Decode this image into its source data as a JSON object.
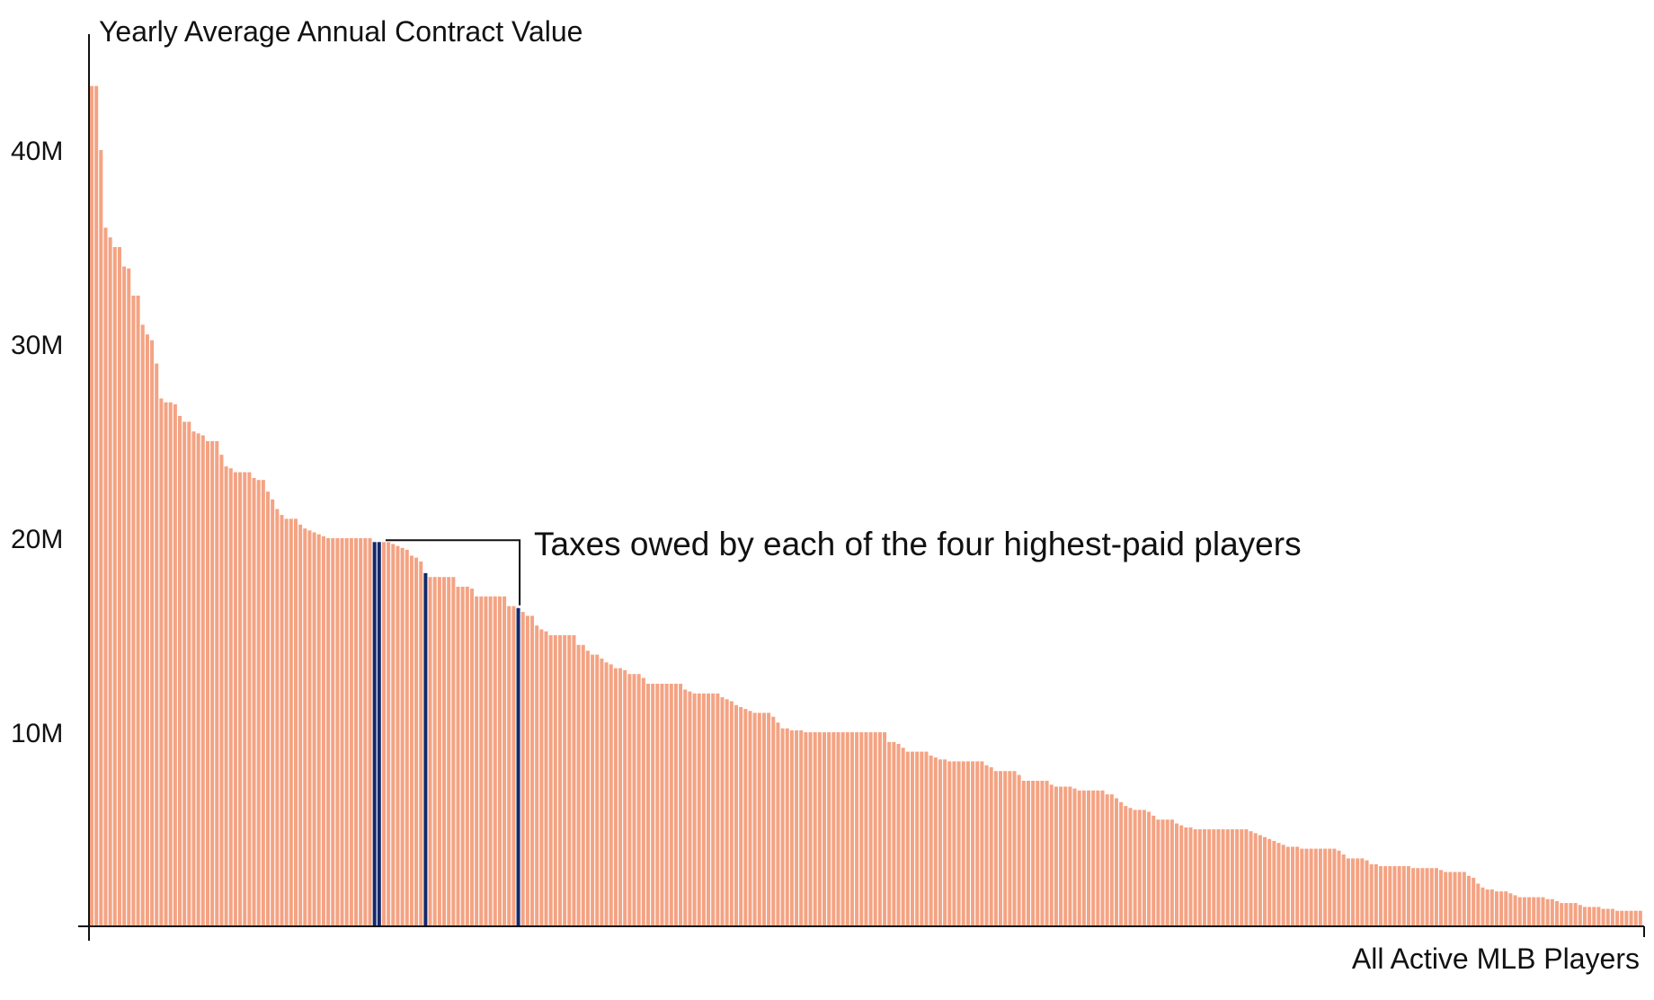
{
  "chart_data": {
    "type": "bar",
    "title": "",
    "ylabel": "Yearly Average Annual Contract Value",
    "xlabel": "All Active MLB Players",
    "ylim": [
      0,
      45000000
    ],
    "yticks": [
      {
        "value": 10000000,
        "label": "10M"
      },
      {
        "value": 20000000,
        "label": "20M"
      },
      {
        "value": 30000000,
        "label": "30M"
      },
      {
        "value": 40000000,
        "label": "40M"
      }
    ],
    "grid": false,
    "legend": "none",
    "colors": {
      "bar": "#f4a383",
      "highlight": "#14296b",
      "axis": "#111111",
      "annotation_line": "#111111"
    },
    "annotation": {
      "text": "Taxes owed by each of the four highest-paid players",
      "points_to_indices": [
        61,
        62,
        72,
        92
      ]
    },
    "highlight_indices": [
      61,
      62,
      72,
      92
    ],
    "values": [
      43300000,
      43300000,
      40000000,
      36000000,
      35500000,
      35000000,
      35000000,
      34000000,
      33900000,
      32500000,
      32500000,
      31000000,
      30500000,
      30200000,
      29000000,
      27200000,
      27000000,
      27000000,
      26900000,
      26300000,
      26000000,
      26000000,
      25500000,
      25400000,
      25300000,
      25000000,
      25000000,
      25000000,
      24300000,
      23700000,
      23600000,
      23400000,
      23400000,
      23400000,
      23400000,
      23100000,
      23000000,
      23000000,
      22400000,
      22000000,
      21500000,
      21200000,
      21000000,
      21000000,
      21000000,
      20700000,
      20500000,
      20400000,
      20300000,
      20200000,
      20100000,
      20000000,
      20000000,
      20000000,
      20000000,
      20000000,
      20000000,
      20000000,
      20000000,
      20000000,
      20000000,
      19800000,
      19800000,
      19800000,
      19800000,
      19700000,
      19600000,
      19500000,
      19400000,
      19100000,
      19000000,
      18800000,
      18200000,
      18000000,
      18000000,
      18000000,
      18000000,
      18000000,
      18000000,
      17500000,
      17500000,
      17500000,
      17400000,
      17000000,
      17000000,
      17000000,
      17000000,
      17000000,
      17000000,
      17000000,
      16500000,
      16500000,
      16400000,
      16200000,
      16000000,
      16000000,
      15500000,
      15300000,
      15200000,
      15000000,
      15000000,
      15000000,
      15000000,
      15000000,
      15000000,
      14500000,
      14500000,
      14200000,
      14000000,
      14000000,
      13800000,
      13600000,
      13500000,
      13300000,
      13300000,
      13200000,
      13000000,
      13000000,
      13000000,
      12800000,
      12500000,
      12500000,
      12500000,
      12500000,
      12500000,
      12500000,
      12500000,
      12500000,
      12200000,
      12100000,
      12000000,
      12000000,
      12000000,
      12000000,
      12000000,
      12000000,
      11800000,
      11700000,
      11600000,
      11400000,
      11300000,
      11200000,
      11100000,
      11000000,
      11000000,
      11000000,
      11000000,
      10800000,
      10500000,
      10200000,
      10200000,
      10100000,
      10100000,
      10100000,
      10000000,
      10000000,
      10000000,
      10000000,
      10000000,
      10000000,
      10000000,
      10000000,
      10000000,
      10000000,
      10000000,
      10000000,
      10000000,
      10000000,
      10000000,
      10000000,
      10000000,
      10000000,
      9500000,
      9500000,
      9400000,
      9200000,
      9000000,
      9000000,
      9000000,
      9000000,
      9000000,
      8800000,
      8700000,
      8600000,
      8600000,
      8500000,
      8500000,
      8500000,
      8500000,
      8500000,
      8500000,
      8500000,
      8500000,
      8300000,
      8200000,
      8000000,
      8000000,
      8000000,
      8000000,
      8000000,
      7800000,
      7500000,
      7500000,
      7500000,
      7500000,
      7500000,
      7500000,
      7300000,
      7200000,
      7200000,
      7200000,
      7200000,
      7100000,
      7000000,
      7000000,
      7000000,
      7000000,
      7000000,
      7000000,
      6800000,
      6800000,
      6600000,
      6400000,
      6200000,
      6100000,
      6000000,
      6000000,
      6000000,
      5900000,
      5700000,
      5500000,
      5500000,
      5500000,
      5500000,
      5300000,
      5200000,
      5100000,
      5100000,
      5000000,
      5000000,
      5000000,
      5000000,
      5000000,
      5000000,
      5000000,
      5000000,
      5000000,
      5000000,
      5000000,
      5000000,
      4900000,
      4800000,
      4700000,
      4600000,
      4500000,
      4400000,
      4300000,
      4200000,
      4100000,
      4100000,
      4100000,
      4000000,
      4000000,
      4000000,
      4000000,
      4000000,
      4000000,
      4000000,
      4000000,
      3900000,
      3700000,
      3500000,
      3500000,
      3500000,
      3500000,
      3400000,
      3200000,
      3200000,
      3100000,
      3100000,
      3100000,
      3100000,
      3100000,
      3100000,
      3100000,
      3000000,
      3000000,
      3000000,
      3000000,
      3000000,
      3000000,
      2900000,
      2800000,
      2800000,
      2800000,
      2800000,
      2800000,
      2600000,
      2500000,
      2200000,
      2000000,
      1900000,
      1900000,
      1800000,
      1800000,
      1800000,
      1700000,
      1600000,
      1500000,
      1500000,
      1500000,
      1500000,
      1500000,
      1500000,
      1400000,
      1400000,
      1300000,
      1200000,
      1200000,
      1200000,
      1200000,
      1100000,
      1000000,
      1000000,
      1000000,
      1000000,
      900000,
      900000,
      900000,
      800000,
      800000,
      800000,
      800000,
      800000,
      800000
    ]
  }
}
